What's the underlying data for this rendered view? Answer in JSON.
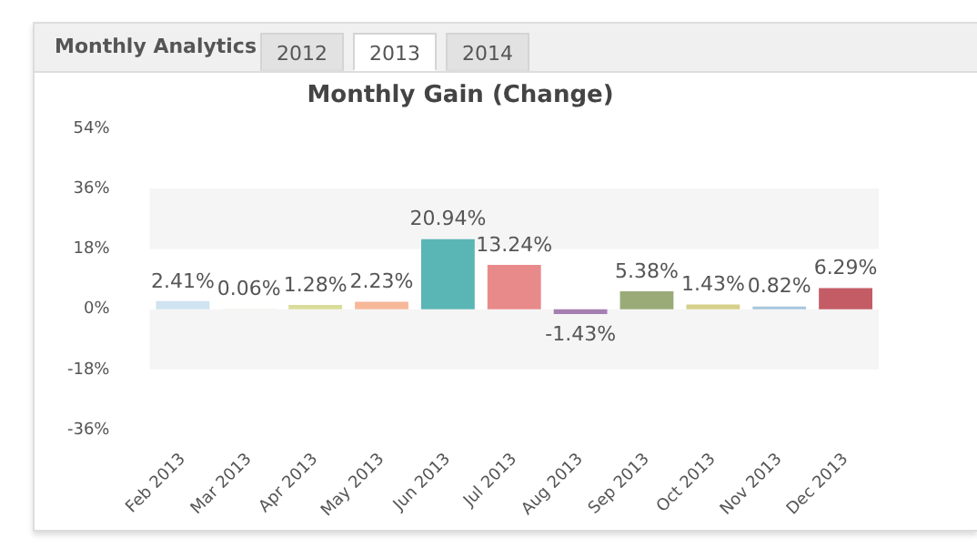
{
  "chart_data": {
    "type": "bar",
    "title": "Monthly Gain (Change)",
    "annotations": [
      "Monthly Analytics",
      "2012",
      "2013",
      "2014"
    ],
    "categories": [
      "Feb 2013",
      "Mar 2013",
      "Apr 2013",
      "May 2013",
      "Jun 2013",
      "Jul 2013",
      "Aug 2013",
      "Sep 2013",
      "Oct 2013",
      "Nov 2013",
      "Dec 2013"
    ],
    "values": [
      2.41,
      0.06,
      1.28,
      2.23,
      20.94,
      13.24,
      -1.43,
      5.38,
      1.43,
      0.82,
      6.29
    ],
    "value_labels": [
      "2.41%",
      "0.06%",
      "1.28%",
      "2.23%",
      "20.94%",
      "13.24%",
      "-1.43%",
      "5.38%",
      "1.43%",
      "0.82%",
      "6.29%"
    ],
    "colors": [
      "#cfe3f0",
      "#e6dcc8",
      "#d9dc9a",
      "#f7b89a",
      "#5ab6b4",
      "#e88a8a",
      "#a57fb0",
      "#9aab78",
      "#d6d08a",
      "#a8c6dc",
      "#c45c66"
    ],
    "ylim": [
      -36,
      54
    ],
    "yticks": [
      {
        "value": -36,
        "label": "-36%"
      },
      {
        "value": -18,
        "label": "-18%"
      },
      {
        "value": 0,
        "label": "0%"
      },
      {
        "value": 18,
        "label": "18%"
      },
      {
        "value": 36,
        "label": "36%"
      },
      {
        "value": 54,
        "label": "54%"
      }
    ],
    "bands": [
      {
        "axis": "y",
        "from": 18,
        "to": 36,
        "color": "#f5f5f5"
      },
      {
        "axis": "y",
        "from": -18,
        "to": 0,
        "color": "#f5f5f5"
      }
    ]
  }
}
